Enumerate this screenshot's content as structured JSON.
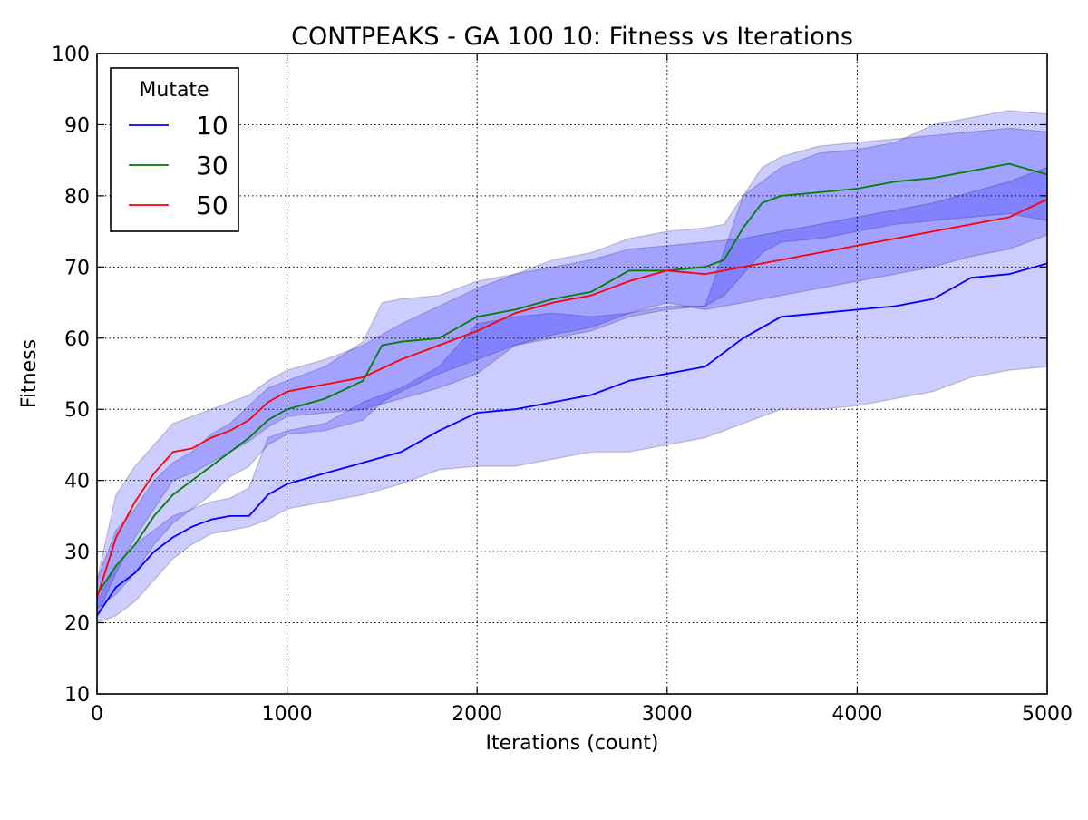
{
  "chart_data": {
    "type": "line",
    "title": "CONTPEAKS - GA 100 10: Fitness vs Iterations",
    "xlabel": "Iterations (count)",
    "ylabel": "Fitness",
    "xlim": [
      0,
      5000
    ],
    "ylim": [
      10,
      100
    ],
    "xticks": [
      0,
      1000,
      2000,
      3000,
      4000,
      5000
    ],
    "yticks": [
      10,
      20,
      30,
      40,
      50,
      60,
      70,
      80,
      90,
      100
    ],
    "grid": true,
    "legend": {
      "title": "Mutate",
      "position": "top-left"
    },
    "series": [
      {
        "name": "10",
        "color": "#0000ff",
        "x": [
          0,
          100,
          200,
          300,
          400,
          500,
          600,
          700,
          800,
          900,
          1000,
          1200,
          1400,
          1600,
          1800,
          2000,
          2200,
          2400,
          2600,
          2800,
          3000,
          3200,
          3400,
          3600,
          3800,
          4000,
          4200,
          4400,
          4600,
          4800,
          5000
        ],
        "mean": [
          21,
          25,
          27,
          30,
          32,
          33.5,
          34.5,
          35,
          35,
          38,
          39.5,
          41,
          42.5,
          44,
          47,
          49.5,
          50,
          51,
          52,
          54,
          55,
          56,
          60,
          63,
          63.5,
          64,
          64.5,
          65.5,
          68.5,
          69,
          70.5
        ],
        "lower": [
          20,
          21,
          23,
          26,
          29,
          31,
          32.5,
          33,
          33.5,
          34.5,
          36,
          37,
          38,
          39.5,
          41.5,
          42,
          42,
          43,
          44,
          44,
          45,
          46,
          48,
          50,
          50,
          50.5,
          51.5,
          52.5,
          54.5,
          55.5,
          56
        ],
        "upper": [
          23,
          28,
          31,
          33,
          35,
          36,
          37,
          37.5,
          39,
          46,
          47,
          48,
          51,
          53,
          56,
          62,
          63,
          63.5,
          63,
          63.5,
          64.5,
          64.5,
          80,
          84,
          86,
          86.5,
          87.5,
          90,
          91,
          92,
          91.5
        ]
      },
      {
        "name": "30",
        "color": "#008000",
        "x": [
          0,
          100,
          200,
          300,
          400,
          500,
          600,
          700,
          800,
          900,
          1000,
          1200,
          1400,
          1500,
          1600,
          1800,
          2000,
          2200,
          2400,
          2600,
          2800,
          3000,
          3200,
          3300,
          3400,
          3500,
          3600,
          3800,
          4000,
          4200,
          4400,
          4600,
          4800,
          5000
        ],
        "mean": [
          24,
          28,
          31,
          35,
          38,
          40,
          42,
          44,
          46,
          48.5,
          50,
          51.5,
          54,
          59,
          59.5,
          60,
          63,
          64,
          65.5,
          66.5,
          69.5,
          69.5,
          70,
          71,
          75.5,
          79,
          80,
          80.5,
          81,
          82,
          82.5,
          83.5,
          84.5,
          83
        ],
        "lower": [
          22,
          24,
          27,
          31,
          34,
          36,
          38,
          40.5,
          42,
          45,
          46.5,
          47,
          48.5,
          51,
          52.5,
          55,
          57,
          59,
          60,
          61,
          63,
          64,
          64.5,
          66,
          69,
          72,
          73.5,
          74,
          75,
          76,
          76.5,
          77,
          77.5,
          76.5
        ],
        "upper": [
          26,
          33,
          36,
          40,
          42.5,
          44,
          46.5,
          48,
          50.5,
          53,
          54,
          56,
          59.5,
          65,
          65.5,
          66,
          68,
          69,
          71,
          72,
          74,
          75,
          75.5,
          76,
          80,
          84,
          85.5,
          87,
          87.5,
          88,
          88.5,
          89,
          89.5,
          89
        ]
      },
      {
        "name": "50",
        "color": "#ff0000",
        "x": [
          0,
          100,
          200,
          300,
          400,
          500,
          600,
          700,
          800,
          900,
          1000,
          1200,
          1400,
          1600,
          1800,
          2000,
          2200,
          2400,
          2600,
          2800,
          3000,
          3200,
          3400,
          3600,
          3800,
          4000,
          4200,
          4400,
          4600,
          4800,
          5000
        ],
        "mean": [
          23.5,
          32,
          37,
          41,
          44,
          44.5,
          46,
          47,
          48.5,
          51,
          52.5,
          53.5,
          54.5,
          57,
          59,
          61,
          63.5,
          65,
          66,
          68,
          69.5,
          69,
          70,
          71,
          72,
          73,
          74,
          75,
          76,
          77,
          79.5
        ],
        "lower": [
          21,
          27,
          32,
          36,
          40,
          41,
          42.5,
          44,
          45.5,
          47.5,
          49,
          49.5,
          50,
          51.5,
          53,
          55,
          59,
          60.5,
          61.5,
          63.5,
          65,
          64,
          65,
          66,
          67,
          68,
          69,
          70,
          71.5,
          72.5,
          74.5
        ],
        "upper": [
          26,
          38,
          42,
          45,
          48,
          49,
          50,
          51,
          52,
          54,
          55.5,
          57,
          59,
          62,
          64.5,
          67,
          69,
          70,
          71,
          72.5,
          73,
          73.5,
          74,
          75,
          76,
          77,
          78,
          79,
          80.5,
          82,
          84
        ]
      }
    ]
  }
}
